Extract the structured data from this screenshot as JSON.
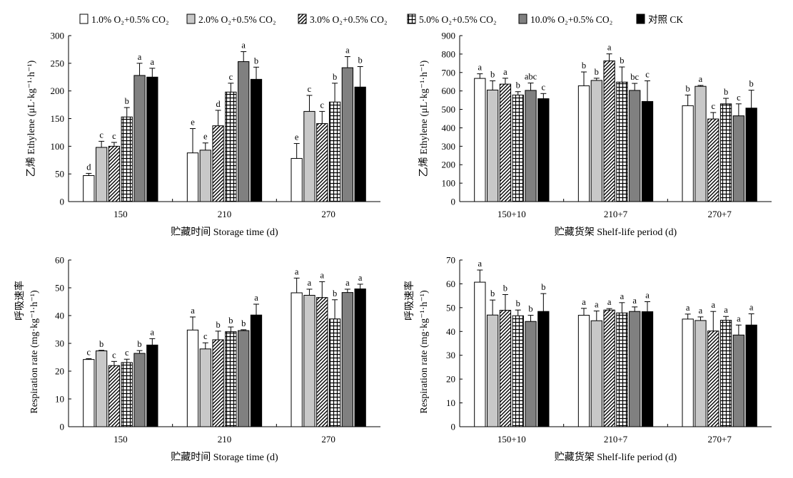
{
  "legend": {
    "entries": [
      {
        "label": "1.0% O₂+0.5% CO₂",
        "pattern": "white"
      },
      {
        "label": "2.0% O₂+0.5% CO₂",
        "pattern": "lightgray"
      },
      {
        "label": "3.0% O₂+0.5% CO₂",
        "pattern": "diag"
      },
      {
        "label": "5.0% O₂+0.5% CO₂",
        "pattern": "grid"
      },
      {
        "label": "10.0% O₂+0.5% CO₂",
        "pattern": "darkgray"
      },
      {
        "label": "对照 CK",
        "pattern": "black"
      }
    ]
  },
  "chart_data": [
    {
      "type": "bar",
      "ylabel": "乙烯 Ethylene (μL·kg⁻¹·h⁻¹)",
      "xlabel": "贮藏时间 Storage time (d)",
      "ylim": [
        0,
        300
      ],
      "yticks": [
        0,
        50,
        100,
        150,
        200,
        250,
        300
      ],
      "categories": [
        "150",
        "210",
        "270"
      ],
      "series": [
        {
          "name": "1.0% O₂+0.5% CO₂",
          "values": [
            47,
            88,
            78
          ],
          "errors": [
            4,
            44,
            27
          ],
          "letters": [
            "d",
            "e",
            "e"
          ]
        },
        {
          "name": "2.0% O₂+0.5% CO₂",
          "values": [
            98,
            93,
            163
          ],
          "errors": [
            11,
            13,
            29
          ],
          "letters": [
            "c",
            "e",
            "c"
          ]
        },
        {
          "name": "3.0% O₂+0.5% CO₂",
          "values": [
            100,
            137,
            141
          ],
          "errors": [
            7,
            28,
            22
          ],
          "letters": [
            "c",
            "d",
            "c"
          ]
        },
        {
          "name": "5.0% O₂+0.5% CO₂",
          "values": [
            153,
            198,
            180
          ],
          "errors": [
            17,
            16,
            34
          ],
          "letters": [
            "b",
            "c",
            "b"
          ]
        },
        {
          "name": "10.0% O₂+0.5% CO₂",
          "values": [
            228,
            253,
            242
          ],
          "errors": [
            22,
            18,
            20
          ],
          "letters": [
            "a",
            "a",
            "a"
          ]
        },
        {
          "name": "对照 CK",
          "values": [
            225,
            221,
            207
          ],
          "errors": [
            16,
            22,
            37
          ],
          "letters": [
            "a",
            "b",
            "b"
          ]
        }
      ]
    },
    {
      "type": "bar",
      "ylabel": "乙烯 Ethylene (μL·kg⁻¹·h⁻¹)",
      "xlabel": "贮藏货架 Shelf-life period (d)",
      "ylim": [
        0,
        900
      ],
      "yticks": [
        0,
        100,
        200,
        300,
        400,
        500,
        600,
        700,
        800,
        900
      ],
      "categories": [
        "150+10",
        "210+7",
        "270+7"
      ],
      "series": [
        {
          "name": "1.0% O₂+0.5% CO₂",
          "values": [
            668,
            628,
            520
          ],
          "errors": [
            25,
            75,
            58
          ],
          "letters": [
            "a",
            "b",
            "b"
          ]
        },
        {
          "name": "2.0% O₂+0.5% CO₂",
          "values": [
            605,
            657,
            625
          ],
          "errors": [
            50,
            12,
            5
          ],
          "letters": [
            "b",
            "b",
            "a"
          ]
        },
        {
          "name": "3.0% O₂+0.5% CO₂",
          "values": [
            637,
            763,
            448
          ],
          "errors": [
            32,
            38,
            35
          ],
          "letters": [
            "a",
            "a",
            "c"
          ]
        },
        {
          "name": "5.0% O₂+0.5% CO₂",
          "values": [
            578,
            648,
            530
          ],
          "errors": [
            18,
            82,
            30
          ],
          "letters": [
            "b",
            "b",
            "b"
          ]
        },
        {
          "name": "10.0% O₂+0.5% CO₂",
          "values": [
            603,
            603,
            465
          ],
          "errors": [
            40,
            38,
            65
          ],
          "letters": [
            "abc",
            "bc",
            "c"
          ]
        },
        {
          "name": "对照 CK",
          "values": [
            558,
            543,
            507
          ],
          "errors": [
            28,
            112,
            97
          ],
          "letters": [
            "c",
            "c",
            "b"
          ]
        }
      ]
    },
    {
      "type": "bar",
      "ylabel": "呼吸速率 Respiration rate (mg·kg⁻¹·h⁻¹)",
      "ylabel_cn": "呼吸速率",
      "ylabel_en": "Respiration rate (mg·kg⁻¹·h⁻¹)",
      "xlabel": "贮藏时间 Storage time (d)",
      "ylim": [
        0,
        60
      ],
      "yticks": [
        0,
        10,
        20,
        30,
        40,
        50,
        60
      ],
      "categories": [
        "150",
        "210",
        "270"
      ],
      "series": [
        {
          "name": "1.0% O₂+0.5% CO₂",
          "values": [
            24.2,
            34.8,
            48.2
          ],
          "errors": [
            0.3,
            4.7,
            5.3
          ],
          "letters": [
            "c",
            "a",
            "a"
          ]
        },
        {
          "name": "2.0% O₂+0.5% CO₂",
          "values": [
            27.3,
            28.0,
            47.3
          ],
          "errors": [
            0.2,
            2.2,
            2.2
          ],
          "letters": [
            "b",
            "c",
            "a"
          ]
        },
        {
          "name": "3.0% O₂+0.5% CO₂",
          "values": [
            22.0,
            31.3,
            46.5
          ],
          "errors": [
            1.5,
            3.1,
            5.7
          ],
          "letters": [
            "c",
            "b",
            "a"
          ]
        },
        {
          "name": "5.0% O₂+0.5% CO₂",
          "values": [
            23.1,
            34.2,
            38.8
          ],
          "errors": [
            1.2,
            1.7,
            6.9
          ],
          "letters": [
            "c",
            "b",
            "b"
          ]
        },
        {
          "name": "10.0% O₂+0.5% CO₂",
          "values": [
            26.4,
            34.6,
            48.3
          ],
          "errors": [
            1.0,
            0.3,
            1.2
          ],
          "letters": [
            "b",
            "b",
            "a"
          ]
        },
        {
          "name": "对照 CK",
          "values": [
            29.4,
            40.2,
            49.6
          ],
          "errors": [
            2.3,
            3.9,
            1.7
          ],
          "letters": [
            "a",
            "a",
            "a"
          ]
        }
      ]
    },
    {
      "type": "bar",
      "ylabel": "呼吸速率 Respiration rate (mg·kg⁻¹·h⁻¹)",
      "ylabel_cn": "呼吸速率",
      "ylabel_en": "Respiration rate (mg·kg⁻¹·h⁻¹)",
      "xlabel": "贮藏货架 Shelf-life period (d)",
      "ylim": [
        0,
        70
      ],
      "yticks": [
        0,
        10,
        20,
        30,
        40,
        50,
        60,
        70
      ],
      "categories": [
        "150+10",
        "210+7",
        "270+7"
      ],
      "series": [
        {
          "name": "1.0% O₂+0.5% CO₂",
          "values": [
            60.7,
            46.8,
            45.2
          ],
          "errors": [
            5.1,
            2.9,
            2.1
          ],
          "letters": [
            "a",
            "a",
            "a"
          ]
        },
        {
          "name": "2.0% O₂+0.5% CO₂",
          "values": [
            46.9,
            44.5,
            44.6
          ],
          "errors": [
            6.3,
            4.1,
            1.5
          ],
          "letters": [
            "b",
            "a",
            "a"
          ]
        },
        {
          "name": "3.0% O₂+0.5% CO₂",
          "values": [
            48.9,
            49.0,
            40.2
          ],
          "errors": [
            6.6,
            0.6,
            8.2
          ],
          "letters": [
            "b",
            "a",
            "a"
          ]
        },
        {
          "name": "5.0% O₂+0.5% CO₂",
          "values": [
            46.6,
            47.8,
            44.7
          ],
          "errors": [
            2.4,
            4.3,
            1.6
          ],
          "letters": [
            "b",
            "a",
            "a"
          ]
        },
        {
          "name": "10.0% O₂+0.5% CO₂",
          "values": [
            44.2,
            48.4,
            38.5
          ],
          "errors": [
            2.6,
            1.9,
            4.2
          ],
          "letters": [
            "b",
            "a",
            "a"
          ]
        },
        {
          "name": "对照 CK",
          "values": [
            48.4,
            48.3,
            42.7
          ],
          "errors": [
            7.5,
            4.2,
            4.7
          ],
          "letters": [
            "b",
            "a",
            "a"
          ]
        }
      ]
    }
  ]
}
